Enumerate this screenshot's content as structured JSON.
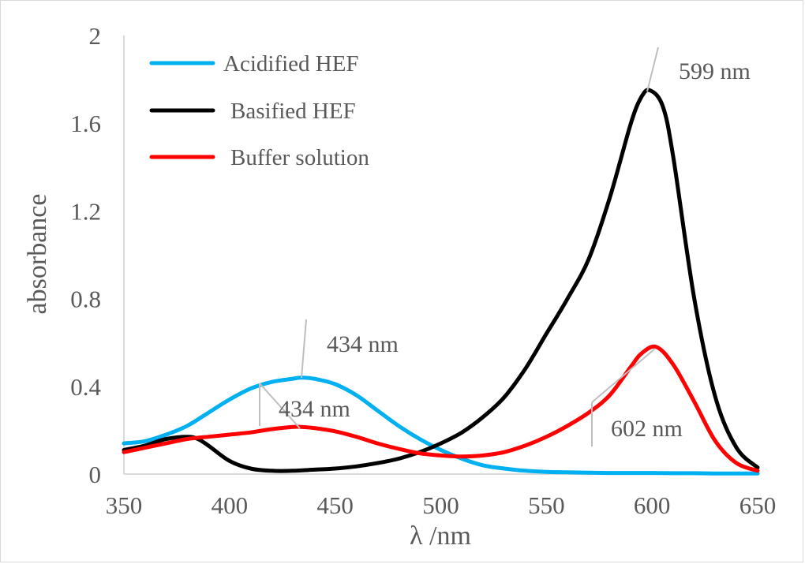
{
  "chart_data": {
    "type": "line",
    "title": "",
    "xlabel": "λ /nm",
    "ylabel": "absorbance",
    "xlim": [
      350,
      650
    ],
    "ylim": [
      0,
      2
    ],
    "x_ticks": [
      350,
      400,
      450,
      500,
      550,
      600,
      650
    ],
    "y_ticks": [
      0,
      0.4,
      0.8,
      1.2,
      1.6,
      2
    ],
    "y_tick_labels": [
      "0",
      "0.4",
      "0.8",
      "1.2",
      "1.6",
      "2"
    ],
    "grid": false,
    "legend_position": "top-left",
    "series": [
      {
        "name": "Acidified HEF",
        "color": "#00b0f0",
        "x": [
          350,
          360,
          370,
          380,
          390,
          400,
          410,
          420,
          430,
          434,
          440,
          450,
          460,
          470,
          480,
          490,
          500,
          510,
          520,
          530,
          540,
          550,
          560,
          570,
          580,
          590,
          600,
          610,
          620,
          630,
          640,
          650
        ],
        "y": [
          0.14,
          0.15,
          0.18,
          0.22,
          0.28,
          0.34,
          0.39,
          0.42,
          0.435,
          0.44,
          0.435,
          0.41,
          0.36,
          0.29,
          0.22,
          0.16,
          0.11,
          0.07,
          0.04,
          0.025,
          0.015,
          0.01,
          0.008,
          0.006,
          0.005,
          0.005,
          0.005,
          0.004,
          0.004,
          0.003,
          0.003,
          0.003
        ]
      },
      {
        "name": "Basified HEF",
        "color": "#000000",
        "x": [
          350,
          360,
          370,
          380,
          385,
          390,
          400,
          410,
          420,
          430,
          440,
          450,
          460,
          470,
          480,
          490,
          500,
          510,
          520,
          530,
          540,
          550,
          560,
          570,
          580,
          590,
          595,
          599,
          605,
          610,
          620,
          630,
          640,
          650
        ],
        "y": [
          0.11,
          0.13,
          0.16,
          0.17,
          0.16,
          0.13,
          0.06,
          0.025,
          0.015,
          0.015,
          0.02,
          0.025,
          0.035,
          0.05,
          0.07,
          0.1,
          0.14,
          0.19,
          0.26,
          0.35,
          0.48,
          0.64,
          0.8,
          0.98,
          1.26,
          1.6,
          1.72,
          1.75,
          1.68,
          1.45,
          0.8,
          0.35,
          0.12,
          0.03
        ]
      },
      {
        "name": "Buffer solution",
        "color": "#ff0000",
        "x": [
          350,
          360,
          370,
          380,
          390,
          400,
          410,
          420,
          430,
          434,
          440,
          450,
          460,
          470,
          480,
          490,
          500,
          510,
          520,
          530,
          540,
          550,
          560,
          570,
          580,
          590,
          595,
          602,
          610,
          620,
          630,
          640,
          650
        ],
        "y": [
          0.1,
          0.12,
          0.14,
          0.16,
          0.17,
          0.18,
          0.19,
          0.205,
          0.215,
          0.215,
          0.21,
          0.195,
          0.17,
          0.14,
          0.115,
          0.095,
          0.085,
          0.08,
          0.085,
          0.1,
          0.13,
          0.17,
          0.22,
          0.28,
          0.36,
          0.49,
          0.55,
          0.58,
          0.5,
          0.33,
          0.15,
          0.05,
          0.015
        ]
      }
    ],
    "annotations": [
      {
        "label": "599 nm",
        "series": "Basified HEF",
        "x": 599,
        "y": 1.75
      },
      {
        "label": "434 nm",
        "series": "Acidified HEF",
        "x": 434,
        "y": 0.44
      },
      {
        "label": "434 nm",
        "series": "Buffer solution",
        "x": 434,
        "y": 0.215
      },
      {
        "label": "602 nm",
        "series": "Buffer solution",
        "x": 602,
        "y": 0.58
      }
    ]
  }
}
